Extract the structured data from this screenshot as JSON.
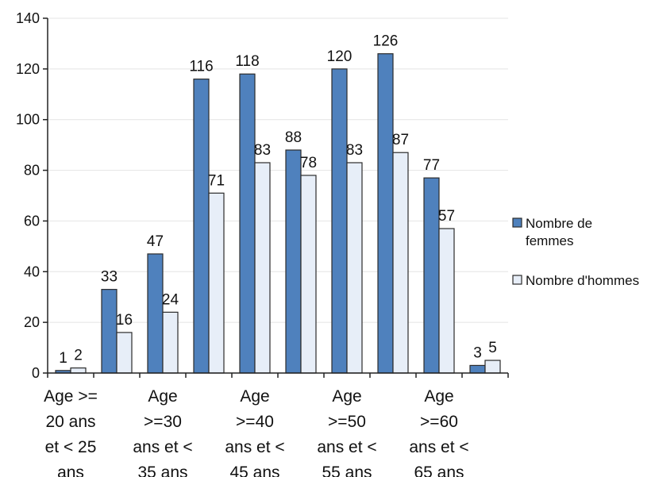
{
  "chart_data": {
    "type": "bar",
    "categories": [
      [
        "Age >=",
        "20 ans",
        "et < 25",
        "ans"
      ],
      [
        "",
        "",
        "",
        ""
      ],
      [
        "Age",
        ">=30",
        "ans et <",
        "35 ans"
      ],
      [
        "",
        "",
        "",
        ""
      ],
      [
        "Age",
        ">=40",
        "ans et <",
        "45 ans"
      ],
      [
        "",
        "",
        "",
        ""
      ],
      [
        "Age",
        ">=50",
        "ans et <",
        "55 ans"
      ],
      [
        "",
        "",
        "",
        ""
      ],
      [
        "Age",
        ">=60",
        "ans et <",
        "65 ans"
      ],
      [
        "",
        "",
        "",
        ""
      ]
    ],
    "series": [
      {
        "name": "Nombre de femmes",
        "legend_lines": [
          "Nombre de",
          "femmes"
        ],
        "color": "#4f81bd",
        "values": [
          1,
          33,
          47,
          116,
          118,
          88,
          120,
          126,
          77,
          3
        ]
      },
      {
        "name": "Nombre d'hommes",
        "legend_lines": [
          "Nombre d'hommes"
        ],
        "color": "#e7eef8",
        "values": [
          2,
          16,
          24,
          71,
          83,
          78,
          83,
          87,
          57,
          5
        ]
      }
    ],
    "yticks": [
      "0",
      "20",
      "40",
      "60",
      "80",
      "100",
      "120",
      "140"
    ],
    "ylim": [
      0,
      140
    ],
    "grid": true,
    "legend_position": "right",
    "title": "",
    "xlabel": "",
    "ylabel": ""
  }
}
